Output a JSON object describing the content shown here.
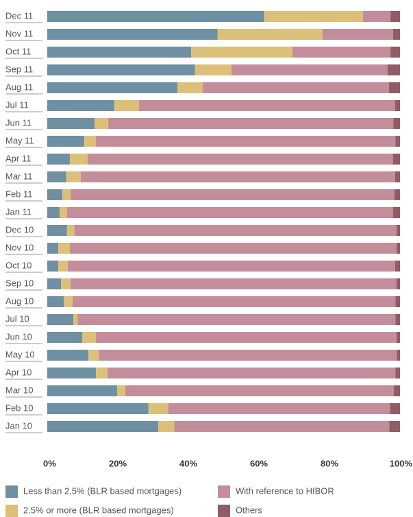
{
  "chart_data": {
    "type": "stacked_barh",
    "categories": [
      "Dec 11",
      "Nov 11",
      "Oct 11",
      "Sep 11",
      "Aug 11",
      "Jul 11",
      "Jun 11",
      "May 11",
      "Apr 11",
      "Mar 11",
      "Feb 11",
      "Jan 11",
      "Dec 10",
      "Nov 10",
      "Oct 10",
      "Sep 10",
      "Aug 10",
      "Jul 10",
      "Jun 10",
      "May 10",
      "Apr 10",
      "Mar 10",
      "Feb 10",
      "Jan 10"
    ],
    "series": [
      {
        "name": "Less than 2.5% (BLR based mortgages)",
        "color": "#6f8fa3",
        "values": [
          61.5,
          48.3,
          40.8,
          41.9,
          36.9,
          19.0,
          13.4,
          10.5,
          6.4,
          5.4,
          4.3,
          3.5,
          5.6,
          3.1,
          3.1,
          3.9,
          4.7,
          7.4,
          9.9,
          11.7,
          13.8,
          19.8,
          28.7,
          31.5
        ]
      },
      {
        "name": "2.5% or more (BLR based mortgages)",
        "color": "#dcc07a",
        "values": [
          28.0,
          29.7,
          28.7,
          10.3,
          7.2,
          7.0,
          3.9,
          3.3,
          5.0,
          4.1,
          2.3,
          2.1,
          2.1,
          3.3,
          2.7,
          2.7,
          2.5,
          1.2,
          3.9,
          2.9,
          3.3,
          2.3,
          5.6,
          4.5
        ]
      },
      {
        "name": "With reference to HIBOR",
        "color": "#c48d9b",
        "values": [
          7.8,
          20.0,
          27.8,
          44.3,
          52.8,
          72.6,
          80.8,
          84.9,
          86.6,
          89.1,
          91.8,
          92.4,
          91.3,
          92.6,
          92.8,
          92.4,
          91.5,
          90.1,
          85.2,
          84.5,
          81.6,
          76.1,
          62.9,
          61.0
        ]
      },
      {
        "name": "Others",
        "color": "#8f5d66",
        "values": [
          2.7,
          2.0,
          2.7,
          3.5,
          3.1,
          1.4,
          1.9,
          1.3,
          2.0,
          1.4,
          1.6,
          2.0,
          1.0,
          1.0,
          1.4,
          1.0,
          1.3,
          1.3,
          1.0,
          0.9,
          1.3,
          1.8,
          2.8,
          3.0
        ]
      }
    ],
    "xlim": [
      0,
      100
    ],
    "xticks": [
      {
        "value": 0,
        "label": "0%"
      },
      {
        "value": 20,
        "label": "20%"
      },
      {
        "value": 40,
        "label": "40%"
      },
      {
        "value": 60,
        "label": "60%"
      },
      {
        "value": 80,
        "label": "80%"
      },
      {
        "value": 100,
        "label": "100%"
      }
    ]
  }
}
